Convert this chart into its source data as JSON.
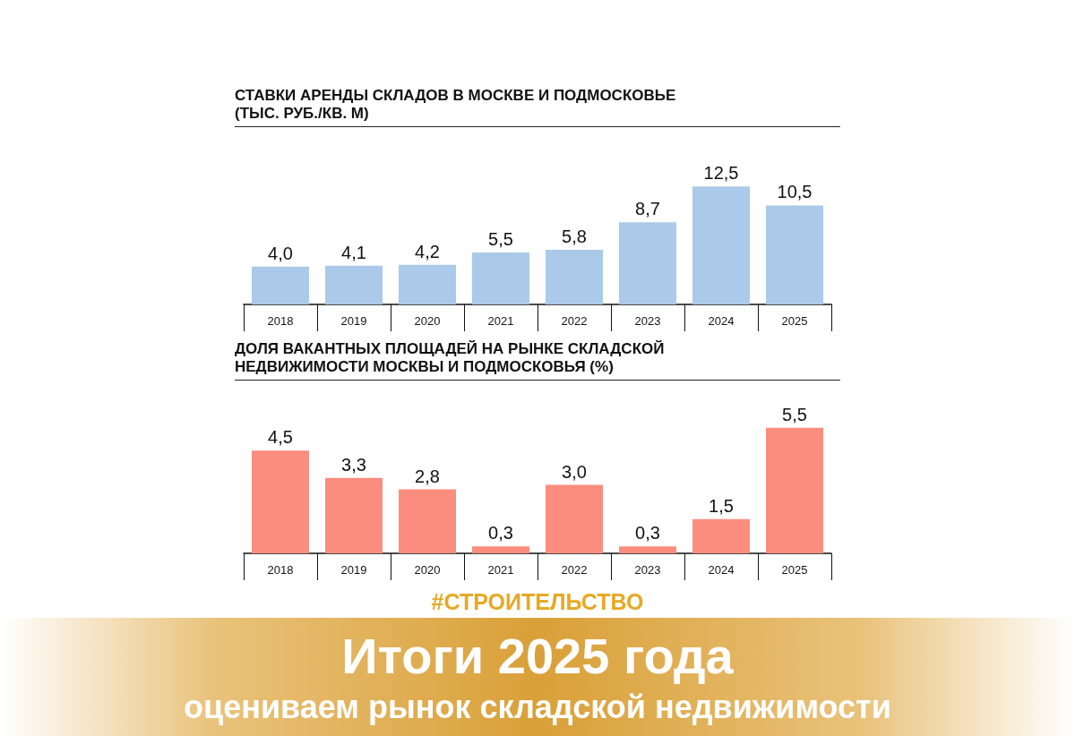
{
  "chart_data": [
    {
      "type": "bar",
      "title": "СТАВКИ АРЕНДЫ СКЛАДОВ В МОСКВЕ И ПОДМОСКОВЬЕ (ТЫС. РУБ./КВ. М)",
      "categories": [
        "2018",
        "2019",
        "2020",
        "2021",
        "2022",
        "2023",
        "2024",
        "2025"
      ],
      "values": [
        4.0,
        4.1,
        4.2,
        5.5,
        5.8,
        8.7,
        12.5,
        10.5
      ],
      "value_labels": [
        "4,0",
        "4,1",
        "4,2",
        "5,5",
        "5,8",
        "8,7",
        "12,5",
        "10,5"
      ],
      "color": "#abc9e8"
    },
    {
      "type": "bar",
      "title": "ДОЛЯ ВАКАНТНЫХ ПЛОЩАДЕЙ НА РЫНКЕ СКЛАДСКОЙ НЕДВИЖИМОСТИ МОСКВЫ И ПОДМОСКОВЬЯ (%)",
      "categories": [
        "2018",
        "2019",
        "2020",
        "2021",
        "2022",
        "2023",
        "2024",
        "2025"
      ],
      "values": [
        4.5,
        3.3,
        2.8,
        0.3,
        3.0,
        0.3,
        1.5,
        5.5
      ],
      "value_labels": [
        "4,5",
        "3,3",
        "2,8",
        "0,3",
        "3,0",
        "0,3",
        "1,5",
        "5,5"
      ],
      "color": "#fb8d7e",
      "annotations": [
        "#СТРОИТЕЛЬСТВО",
        "Итоги 2025 года",
        "оцениваем рынок складской недвижимости"
      ]
    }
  ]
}
